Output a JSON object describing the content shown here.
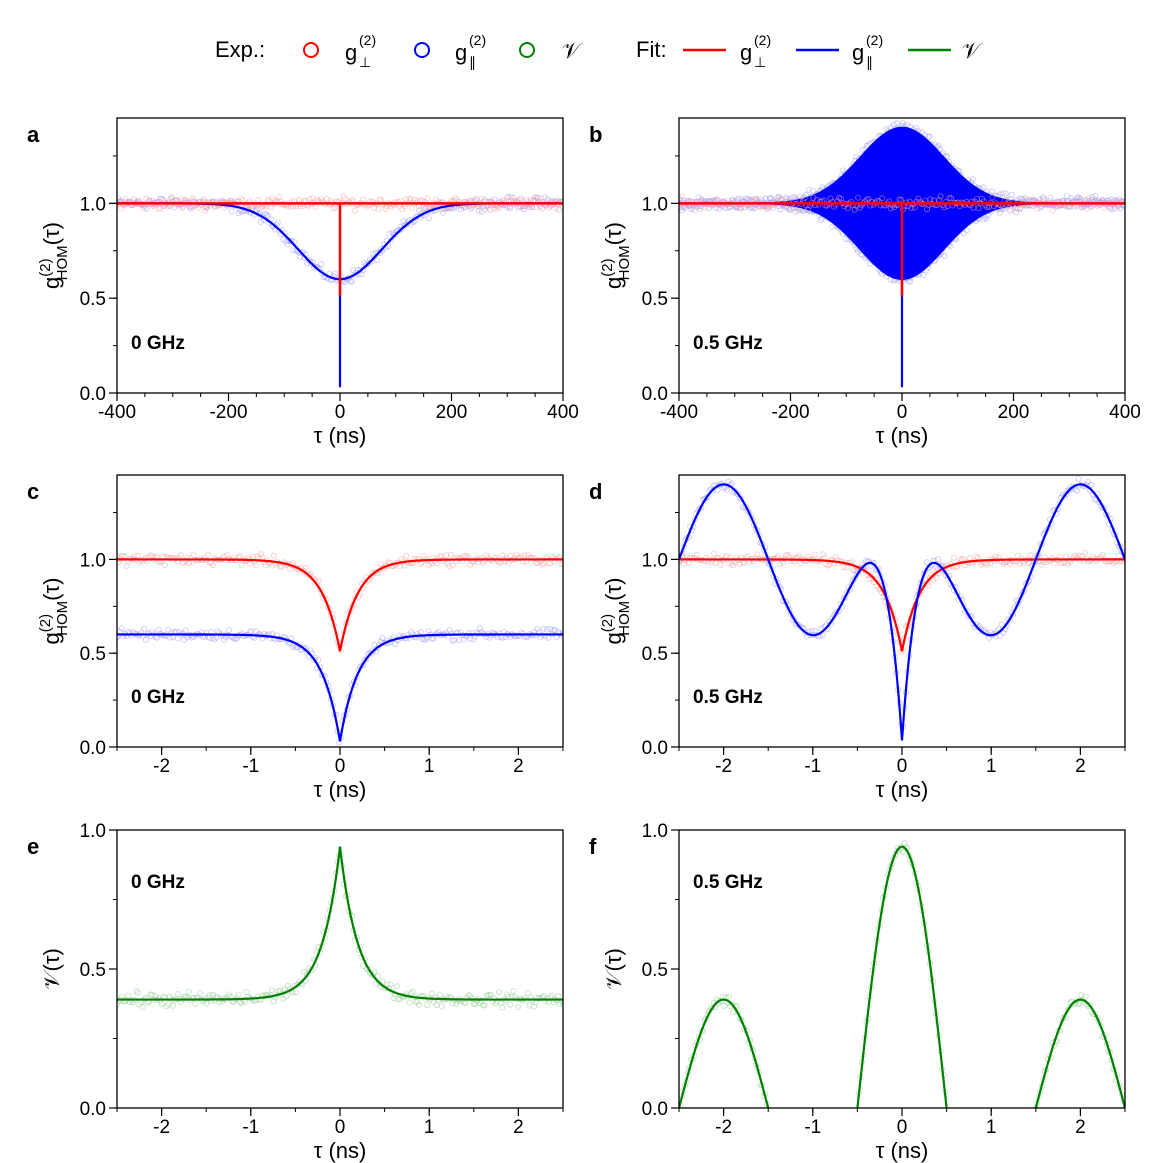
{
  "legend": {
    "exp_label": "Exp.:",
    "fit_label": "Fit:",
    "entries": [
      {
        "base": "g",
        "sup": "(2)",
        "sub": "⊥",
        "color": "#ff0000"
      },
      {
        "base": "g",
        "sup": "(2)",
        "sub": "∥",
        "color": "#0000ff"
      },
      {
        "base": "𝒱",
        "sup": "",
        "sub": "",
        "color": "#008000"
      }
    ]
  },
  "colors": {
    "perp": "#ff0000",
    "par": "#0000ff",
    "vis": "#008000",
    "perp_light": "#f4a0a0",
    "par_light": "#9a9af0",
    "vis_light": "#8fc98f"
  },
  "chart_data": [
    {
      "panel": "a",
      "type": "line",
      "tag": "0 GHz",
      "xlabel": "τ (ns)",
      "ylabel": "g(2)HOM(τ)",
      "xlim": [
        -400,
        400
      ],
      "ylim": [
        0,
        1.45
      ],
      "xticks": [
        -400,
        -200,
        0,
        200,
        400
      ],
      "xtick_labels": [
        "-400",
        "-200",
        "0",
        "200",
        "400"
      ],
      "yticks": [
        0,
        0.5,
        1.0
      ],
      "ytick_labels": [
        "0.0",
        "0.5",
        "1.0"
      ],
      "series": [
        {
          "key": "perp",
          "kind": "fit",
          "model": {
            "base": 1.0,
            "dip_depth": 0.49,
            "dip_width_ns": 0.2
          }
        },
        {
          "key": "par",
          "kind": "fit",
          "model": {
            "broad_dip": 0.4,
            "broad_sigma_ns": 75,
            "narrow_min": 0.03
          }
        }
      ]
    },
    {
      "panel": "b",
      "type": "line",
      "tag": "0.5 GHz",
      "xlabel": "τ (ns)",
      "ylabel": "g(2)HOM(τ)",
      "xlim": [
        -400,
        400
      ],
      "ylim": [
        0,
        1.45
      ],
      "xticks": [
        -400,
        -200,
        0,
        200,
        400
      ],
      "xtick_labels": [
        "-400",
        "-200",
        "0",
        "200",
        "400"
      ],
      "yticks": [
        0,
        0.5,
        1.0
      ],
      "ytick_labels": [
        "0.0",
        "0.5",
        "1.0"
      ],
      "series": [
        {
          "key": "perp",
          "kind": "fit",
          "model": {
            "base": 1.0,
            "dip_depth": 0.49
          }
        },
        {
          "key": "par",
          "kind": "fit",
          "model": {
            "envelope_max": 1.4,
            "envelope_min": 0.6,
            "envelope_sigma_ns": 75,
            "beat_freq_GHz": 0.5,
            "narrow_min": 0.03
          }
        }
      ]
    },
    {
      "panel": "c",
      "type": "line",
      "tag": "0 GHz",
      "xlabel": "τ (ns)",
      "ylabel": "g(2)HOM(τ)",
      "xlim": [
        -2.5,
        2.5
      ],
      "ylim": [
        0,
        1.45
      ],
      "xticks": [
        -2,
        -1,
        0,
        1,
        2
      ],
      "xtick_labels": [
        "-2",
        "-1",
        "0",
        "1",
        "2"
      ],
      "yticks": [
        0,
        0.5,
        1.0
      ],
      "ytick_labels": [
        "0.0",
        "0.5",
        "1.0"
      ],
      "series": [
        {
          "key": "perp",
          "kind": "fit",
          "model": {
            "base": 1.0,
            "dip_min": 0.51,
            "width_ns": 0.2
          }
        },
        {
          "key": "par",
          "kind": "fit",
          "model": {
            "base": 0.6,
            "dip_min": 0.03,
            "width_ns": 0.2
          }
        }
      ]
    },
    {
      "panel": "d",
      "type": "line",
      "tag": "0.5 GHz",
      "xlabel": "τ (ns)",
      "ylabel": "g(2)HOM(τ)",
      "xlim": [
        -2.5,
        2.5
      ],
      "ylim": [
        0,
        1.45
      ],
      "xticks": [
        -2,
        -1,
        0,
        1,
        2
      ],
      "xtick_labels": [
        "-2",
        "-1",
        "0",
        "1",
        "2"
      ],
      "yticks": [
        0,
        0.5,
        1.0
      ],
      "ytick_labels": [
        "0.0",
        "0.5",
        "1.0"
      ],
      "series": [
        {
          "key": "perp",
          "kind": "fit",
          "model": {
            "base": 1.0,
            "dip_min": 0.51,
            "width_ns": 0.2
          }
        },
        {
          "key": "par",
          "kind": "fit",
          "model": {
            "mean": 1.0,
            "amplitude": 0.4,
            "period_ns": 2.0,
            "dip_min": 0.03,
            "width_ns": 0.2
          }
        }
      ]
    },
    {
      "panel": "e",
      "type": "line",
      "tag": "0 GHz",
      "xlabel": "τ (ns)",
      "ylabel": "𝒱(τ)",
      "xlim": [
        -2.5,
        2.5
      ],
      "ylim": [
        0,
        1.0
      ],
      "xticks": [
        -2,
        -1,
        0,
        1,
        2
      ],
      "xtick_labels": [
        "-2",
        "-1",
        "0",
        "1",
        "2"
      ],
      "yticks": [
        0,
        0.5,
        1.0
      ],
      "ytick_labels": [
        "0.0",
        "0.5",
        "1.0"
      ],
      "series": [
        {
          "key": "vis",
          "kind": "fit",
          "model": {
            "base": 0.39,
            "peak": 0.94,
            "width_ns": 0.2
          }
        }
      ]
    },
    {
      "panel": "f",
      "type": "line",
      "tag": "0.5 GHz",
      "xlabel": "τ (ns)",
      "ylabel": "𝒱(τ)",
      "xlim": [
        -2.5,
        2.5
      ],
      "ylim": [
        0,
        1.0
      ],
      "xticks": [
        -2,
        -1,
        0,
        1,
        2
      ],
      "xtick_labels": [
        "-2",
        "-1",
        "0",
        "1",
        "2"
      ],
      "yticks": [
        0,
        0.5,
        1.0
      ],
      "ytick_labels": [
        "0.0",
        "0.5",
        "1.0"
      ],
      "series": [
        {
          "key": "vis",
          "kind": "fit",
          "model": {
            "peak_center": 0.94,
            "peak_side": 0.39,
            "side_centers_ns": [
              -2,
              2
            ],
            "period_ns": 2.0
          }
        }
      ]
    }
  ]
}
